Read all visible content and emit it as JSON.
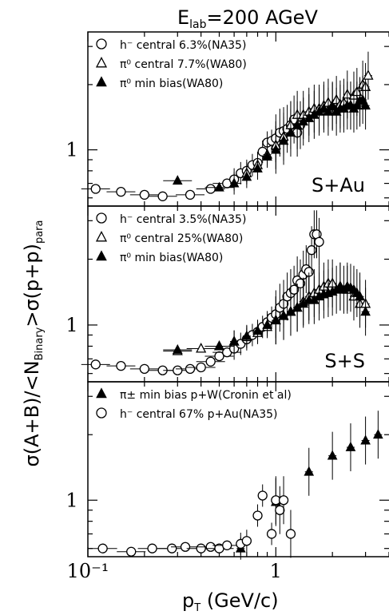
{
  "title": {
    "prefix": "E",
    "sub": "lab",
    "rest": "=200 AGeV"
  },
  "ylabel": {
    "a": "σ(A+B)/<N",
    "sub1": "Binary",
    "b": ">σ(p+p)",
    "sub2": "para"
  },
  "xlabel": {
    "a": "p",
    "sub": "T",
    "b": " (GeV/c)"
  },
  "chart_data": [
    {
      "type": "scatter",
      "xscale": "log",
      "yscale": "log",
      "xlim": [
        0.1,
        4
      ],
      "ylim": [
        0.55,
        3.5
      ],
      "ytick_labels": [
        "1"
      ],
      "xtick_labels": [
        "10⁻¹",
        "1"
      ],
      "panel_label": "S+Au",
      "legend_position": "top-left",
      "series": [
        {
          "name": "h⁻ central 6.3%(NA35)",
          "marker": "open-circle",
          "x": [
            0.11,
            0.15,
            0.2,
            0.25,
            0.35,
            0.45,
            0.55,
            0.6,
            0.65,
            0.7,
            0.75,
            0.8,
            0.85,
            0.9,
            0.95,
            1.0,
            1.05,
            1.1,
            1.15,
            1.2,
            1.25,
            1.3,
            1.35
          ],
          "y": [
            0.66,
            0.64,
            0.62,
            0.61,
            0.62,
            0.66,
            0.7,
            0.73,
            0.78,
            0.8,
            0.85,
            0.87,
            0.98,
            1.08,
            1.1,
            1.13,
            1.2,
            1.22,
            1.25,
            1.3,
            1.38,
            1.2,
            1.3
          ]
        },
        {
          "name": "π⁰ central 7.7%(WA80)",
          "marker": "open-triangle",
          "x": [
            0.7,
            0.8,
            0.9,
            1.0,
            1.1,
            1.2,
            1.3,
            1.4,
            1.5,
            1.6,
            1.7,
            1.8,
            1.9,
            2.0,
            2.1,
            2.2,
            2.3,
            2.4,
            2.5,
            2.6,
            2.7,
            2.8,
            2.9,
            3.0,
            3.1
          ],
          "y": [
            0.78,
            0.85,
            0.95,
            1.05,
            1.15,
            1.3,
            1.45,
            1.45,
            1.5,
            1.55,
            1.55,
            1.6,
            1.65,
            1.6,
            1.7,
            1.62,
            1.65,
            1.8,
            1.6,
            1.78,
            1.85,
            1.65,
            2.0,
            1.95,
            2.2
          ]
        },
        {
          "name": "π⁰ min bias(WA80)",
          "marker": "filled-triangle",
          "x": [
            0.3,
            0.5,
            0.6,
            0.7,
            0.8,
            0.9,
            1.0,
            1.1,
            1.2,
            1.3,
            1.4,
            1.5,
            1.6,
            1.7,
            1.8,
            1.9,
            2.0,
            2.1,
            2.2,
            2.3,
            2.4,
            2.5,
            2.6,
            2.7,
            2.8,
            2.9,
            3.0
          ],
          "y": [
            0.72,
            0.67,
            0.7,
            0.75,
            0.82,
            0.93,
            1.0,
            1.1,
            1.2,
            1.3,
            1.35,
            1.4,
            1.45,
            1.5,
            1.55,
            1.5,
            1.58,
            1.5,
            1.55,
            1.55,
            1.6,
            1.6,
            1.55,
            1.6,
            1.68,
            1.7,
            1.6
          ]
        }
      ]
    },
    {
      "type": "scatter",
      "xscale": "log",
      "yscale": "log",
      "xlim": [
        0.1,
        4
      ],
      "ylim": [
        0.55,
        3.5
      ],
      "ytick_labels": [
        "1"
      ],
      "panel_label": "S+S",
      "legend_position": "top-left",
      "series": [
        {
          "name": "h⁻ central 3.5%(NA35)",
          "marker": "open-circle",
          "x": [
            0.11,
            0.15,
            0.2,
            0.25,
            0.3,
            0.35,
            0.4,
            0.45,
            0.5,
            0.55,
            0.6,
            0.65,
            0.7,
            0.75,
            0.8,
            0.85,
            0.9,
            0.95,
            1.0,
            1.05,
            1.1,
            1.15,
            1.2,
            1.25,
            1.3,
            1.35,
            1.4,
            1.45,
            1.5,
            1.55,
            1.6,
            1.65,
            1.7
          ],
          "y": [
            0.66,
            0.65,
            0.63,
            0.62,
            0.62,
            0.63,
            0.64,
            0.68,
            0.72,
            0.75,
            0.78,
            0.82,
            0.86,
            0.9,
            0.93,
            0.98,
            1.03,
            1.08,
            1.12,
            1.2,
            1.25,
            1.35,
            1.4,
            1.45,
            1.6,
            1.55,
            1.7,
            1.8,
            1.75,
            2.2,
            2.6,
            2.6,
            2.4
          ]
        },
        {
          "name": "π⁰ central 25%(WA80)",
          "marker": "open-triangle",
          "x": [
            0.3,
            0.4,
            0.5,
            0.6,
            0.7,
            0.8,
            0.9,
            1.0,
            1.1,
            1.2,
            1.3,
            1.4,
            1.5,
            1.6,
            1.7,
            1.8,
            1.9,
            2.0,
            2.2,
            2.4,
            2.6,
            2.8,
            3.0
          ],
          "y": [
            0.76,
            0.78,
            0.8,
            0.84,
            0.88,
            0.92,
            0.98,
            1.05,
            1.1,
            1.15,
            1.2,
            1.28,
            1.35,
            1.4,
            1.45,
            1.5,
            1.55,
            1.55,
            1.5,
            1.45,
            1.35,
            1.25,
            1.25
          ]
        },
        {
          "name": "π⁰ min bias(WA80)",
          "marker": "filled-triangle",
          "x": [
            0.3,
            0.5,
            0.6,
            0.7,
            0.8,
            0.9,
            1.0,
            1.1,
            1.2,
            1.3,
            1.4,
            1.5,
            1.6,
            1.7,
            1.8,
            1.9,
            2.0,
            2.1,
            2.2,
            2.3,
            2.4,
            2.5,
            2.6,
            2.7,
            2.8,
            3.0
          ],
          "y": [
            0.77,
            0.8,
            0.84,
            0.89,
            0.94,
            1.0,
            1.05,
            1.1,
            1.15,
            1.2,
            1.25,
            1.3,
            1.3,
            1.35,
            1.38,
            1.4,
            1.42,
            1.45,
            1.5,
            1.45,
            1.5,
            1.48,
            1.45,
            1.4,
            1.35,
            1.15
          ]
        }
      ]
    },
    {
      "type": "scatter",
      "xscale": "log",
      "yscale": "log",
      "xlim": [
        0.1,
        4
      ],
      "ylim": [
        0.55,
        3.5
      ],
      "ytick_labels": [
        "1"
      ],
      "xtick_labels": [
        "10⁻¹",
        "1"
      ],
      "legend_position": "top-left",
      "series": [
        {
          "name": "π± min bias p+W(Cronin et al)",
          "marker": "filled-triangle",
          "x": [
            0.65,
            1.0,
            1.5,
            2.0,
            2.5,
            3.0,
            3.5
          ],
          "y": [
            0.6,
            0.98,
            1.35,
            1.6,
            1.75,
            1.88,
            2.0
          ]
        },
        {
          "name": "h⁻ central 67% p+Au(NA35)",
          "marker": "open-circle",
          "x": [
            0.12,
            0.17,
            0.22,
            0.28,
            0.33,
            0.4,
            0.45,
            0.5,
            0.55,
            0.65,
            0.7,
            0.8,
            0.85,
            0.95,
            1.0,
            1.05,
            1.1,
            1.2
          ],
          "y": [
            0.6,
            0.58,
            0.6,
            0.6,
            0.61,
            0.6,
            0.61,
            0.6,
            0.62,
            0.63,
            0.65,
            0.85,
            1.05,
            0.7,
            1.0,
            0.9,
            1.0,
            0.7
          ]
        }
      ]
    }
  ]
}
